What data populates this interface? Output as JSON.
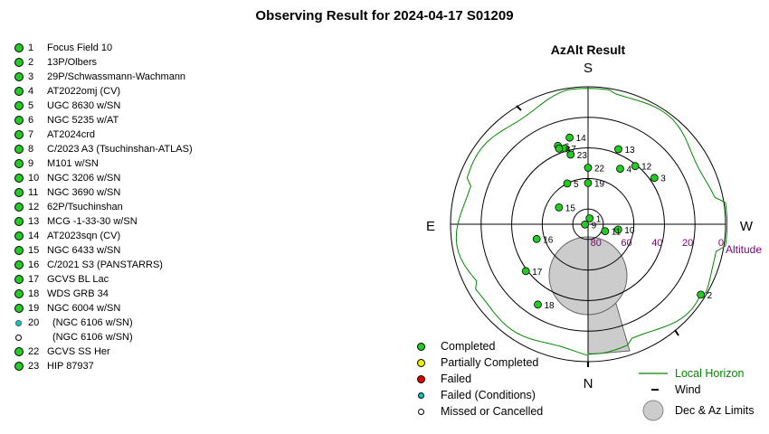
{
  "title": "Observing Result for 2024-04-17  S01209",
  "chart_title": "AzAlt Result",
  "compass": {
    "south": "S",
    "north": "N",
    "east": "E",
    "west": "W"
  },
  "altitude_ticks": [
    "80",
    "60",
    "40",
    "20",
    "0"
  ],
  "altitude_label": "Altitude",
  "colors": {
    "completed": "#22cc22",
    "partially_completed": "#eeee00",
    "failed": "#dd0000",
    "failed_conditions": "#00cccc",
    "missed": "#ffffff",
    "horizon": "#008800",
    "altitude_text": "#800080",
    "limits_fill": "#cccccc"
  },
  "targets": [
    {
      "num": "1",
      "name": "Focus Field 10",
      "status": "completed"
    },
    {
      "num": "2",
      "name": "13P/Olbers",
      "status": "completed"
    },
    {
      "num": "3",
      "name": "29P/Schwassmann-Wachmann",
      "status": "completed"
    },
    {
      "num": "4",
      "name": "AT2022omj (CV)",
      "status": "completed"
    },
    {
      "num": "5",
      "name": "UGC 8630 w/SN",
      "status": "completed"
    },
    {
      "num": "6",
      "name": "NGC 5235 w/AT",
      "status": "completed"
    },
    {
      "num": "7",
      "name": "AT2024crd",
      "status": "completed"
    },
    {
      "num": "8",
      "name": "C/2023 A3 (Tsuchinshan-ATLAS)",
      "status": "completed"
    },
    {
      "num": "9",
      "name": "M101 w/SN",
      "status": "completed"
    },
    {
      "num": "10",
      "name": "NGC 3206 w/SN",
      "status": "completed"
    },
    {
      "num": "11",
      "name": "NGC 3690 w/SN",
      "status": "completed"
    },
    {
      "num": "12",
      "name": "62P/Tsuchinshan",
      "status": "completed"
    },
    {
      "num": "13",
      "name": "MCG -1-33-30 w/SN",
      "status": "completed"
    },
    {
      "num": "14",
      "name": "AT2023sqn (CV)",
      "status": "completed"
    },
    {
      "num": "15",
      "name": "NGC 6433 w/SN",
      "status": "completed"
    },
    {
      "num": "16",
      "name": "C/2021 S3 (PANSTARRS)",
      "status": "completed"
    },
    {
      "num": "17",
      "name": "GCVS BL Lac",
      "status": "completed"
    },
    {
      "num": "18",
      "name": "WDS GRB 34",
      "status": "completed"
    },
    {
      "num": "19",
      "name": "NGC 6004 w/SN",
      "status": "completed"
    },
    {
      "num": "20",
      "name": "(NGC 6106 w/SN)",
      "status": "failed_conditions"
    },
    {
      "num": "",
      "name": "(NGC 6106 w/SN)",
      "status": "missed"
    },
    {
      "num": "22",
      "name": "GCVS SS Her",
      "status": "completed"
    },
    {
      "num": "23",
      "name": "HIP 87937",
      "status": "completed"
    }
  ],
  "plot_points": [
    {
      "label": "1",
      "az": 195,
      "alt": 86
    },
    {
      "label": "2",
      "az": 302,
      "alt": 3
    },
    {
      "label": "3",
      "az": 235,
      "alt": 37
    },
    {
      "label": "4",
      "az": 210,
      "alt": 48
    },
    {
      "label": "5",
      "az": 153,
      "alt": 60
    },
    {
      "label": "6",
      "az": 159,
      "alt": 35
    },
    {
      "label": "7",
      "az": 163,
      "alt": 38
    },
    {
      "label": "8",
      "az": 159,
      "alt": 37
    },
    {
      "label": "9",
      "az": 85,
      "alt": 88
    },
    {
      "label": "10",
      "az": 280,
      "alt": 70
    },
    {
      "label": "11",
      "az": 292,
      "alt": 78
    },
    {
      "label": "12",
      "az": 219,
      "alt": 41
    },
    {
      "label": "13",
      "az": 202,
      "alt": 37
    },
    {
      "label": "14",
      "az": 168,
      "alt": 32
    },
    {
      "label": "15",
      "az": 120,
      "alt": 68
    },
    {
      "label": "16",
      "az": 74,
      "alt": 55
    },
    {
      "label": "17",
      "az": 53,
      "alt": 39
    },
    {
      "label": "18",
      "az": 32,
      "alt": 28
    },
    {
      "label": "19",
      "az": 180,
      "alt": 63
    },
    {
      "label": "22",
      "az": 180,
      "alt": 53
    },
    {
      "label": "23",
      "az": 166,
      "alt": 43
    }
  ],
  "legend": [
    {
      "label": "Completed",
      "status": "completed"
    },
    {
      "label": "Partially Completed",
      "status": "partially_completed"
    },
    {
      "label": "Failed",
      "status": "failed"
    },
    {
      "label": "Failed (Conditions)",
      "status": "failed_conditions"
    },
    {
      "label": "Missed or Cancelled",
      "status": "missed"
    }
  ],
  "legend_right": {
    "horizon": "Local Horizon",
    "wind": "Wind",
    "limits": "Dec & Az Limits"
  }
}
